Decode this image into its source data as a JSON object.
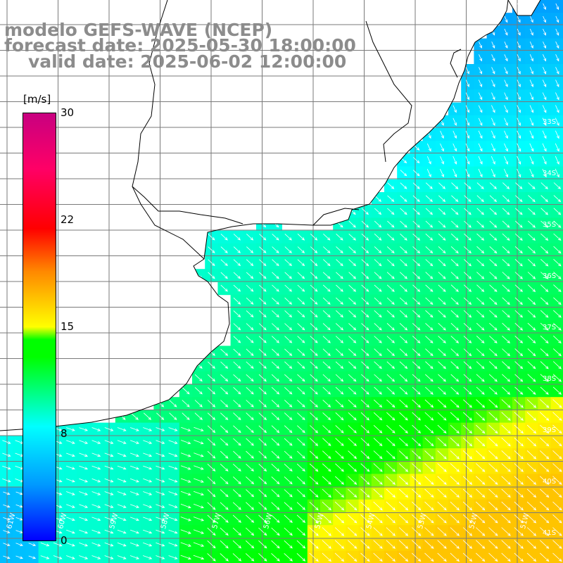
{
  "title": {
    "line1": "modelo GEFS-WAVE (NCEP)",
    "line2": "forecast date: 2025-05-30 18:00:00",
    "line3": "valid date: 2025-06-02 12:00:00"
  },
  "colorbar": {
    "unit": "[m/s]",
    "min": 0,
    "max": 30,
    "ticks": [
      "30",
      "22",
      "15",
      "8",
      "0"
    ]
  },
  "map": {
    "variable": "wind speed with direction arrows",
    "lat_labels": [
      "33S",
      "34S",
      "35S",
      "36S",
      "37S",
      "38S",
      "39S",
      "40S",
      "41S"
    ],
    "lon_labels": [
      "61W",
      "60W",
      "59W",
      "58W",
      "57W",
      "56W",
      "55W",
      "54W",
      "53W",
      "52W",
      "51W"
    ],
    "land_color": "#ffffff",
    "grid_color": "#7a7a7a"
  }
}
